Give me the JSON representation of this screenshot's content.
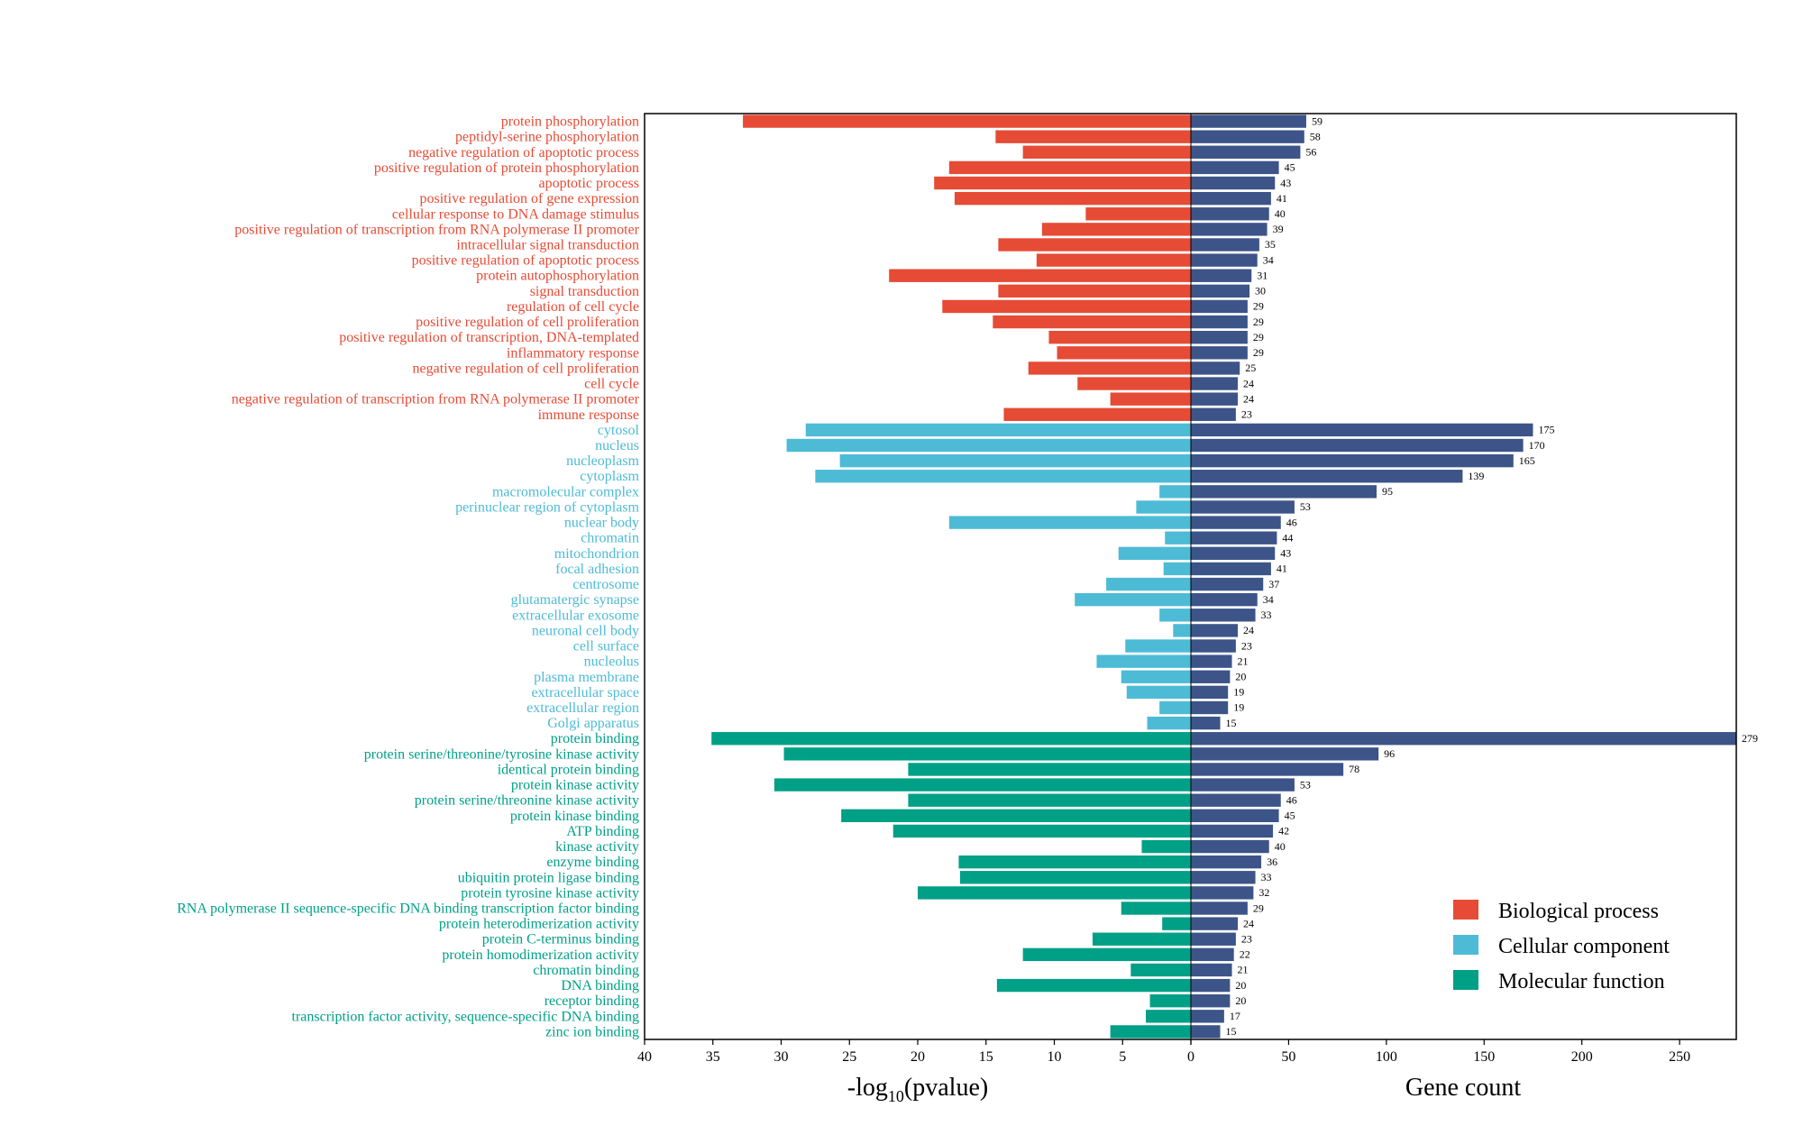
{
  "colors": {
    "biological_process": "#e64b35",
    "cellular_component": "#4dbbd5",
    "molecular_function": "#00a087",
    "gene_count": "#3c5488"
  },
  "chart_data": {
    "type": "bar",
    "title": "",
    "left_axis": {
      "label_prefix": "-log",
      "label_sub": "10",
      "label_suffix": "(pvalue)",
      "range": [
        40,
        0
      ],
      "ticks": [
        40,
        35,
        30,
        25,
        20,
        15,
        10,
        5,
        0
      ]
    },
    "right_axis": {
      "label": "Gene count",
      "range": [
        0,
        279
      ],
      "ticks": [
        0,
        50,
        100,
        150,
        200,
        250
      ]
    },
    "legend": {
      "placement": "bottom-right",
      "items": [
        {
          "label": "Biological process",
          "category": "biological_process"
        },
        {
          "label": "Cellular component",
          "category": "cellular_component"
        },
        {
          "label": "Molecular function",
          "category": "molecular_function"
        }
      ]
    },
    "terms": [
      {
        "name": "protein phosphorylation",
        "category": "biological_process",
        "neg_log10_p": 32.8,
        "count": 59
      },
      {
        "name": "peptidyl-serine phosphorylation",
        "category": "biological_process",
        "neg_log10_p": 14.3,
        "count": 58
      },
      {
        "name": "negative regulation of apoptotic process",
        "category": "biological_process",
        "neg_log10_p": 12.3,
        "count": 56
      },
      {
        "name": "positive regulation of protein phosphorylation",
        "category": "biological_process",
        "neg_log10_p": 17.7,
        "count": 45
      },
      {
        "name": "apoptotic process",
        "category": "biological_process",
        "neg_log10_p": 18.8,
        "count": 43
      },
      {
        "name": "positive regulation of gene expression",
        "category": "biological_process",
        "neg_log10_p": 17.3,
        "count": 41
      },
      {
        "name": "cellular response to DNA damage stimulus",
        "category": "biological_process",
        "neg_log10_p": 7.7,
        "count": 40
      },
      {
        "name": "positive regulation of transcription from RNA polymerase II promoter",
        "category": "biological_process",
        "neg_log10_p": 10.9,
        "count": 39
      },
      {
        "name": "intracellular signal transduction",
        "category": "biological_process",
        "neg_log10_p": 14.1,
        "count": 35
      },
      {
        "name": "positive regulation of apoptotic process",
        "category": "biological_process",
        "neg_log10_p": 11.3,
        "count": 34
      },
      {
        "name": "protein autophosphorylation",
        "category": "biological_process",
        "neg_log10_p": 22.1,
        "count": 31
      },
      {
        "name": "signal transduction",
        "category": "biological_process",
        "neg_log10_p": 14.1,
        "count": 30
      },
      {
        "name": "regulation of cell cycle",
        "category": "biological_process",
        "neg_log10_p": 18.2,
        "count": 29
      },
      {
        "name": "positive regulation of cell proliferation",
        "category": "biological_process",
        "neg_log10_p": 14.5,
        "count": 29
      },
      {
        "name": "positive regulation of transcription, DNA-templated",
        "category": "biological_process",
        "neg_log10_p": 10.4,
        "count": 29
      },
      {
        "name": "inflammatory response",
        "category": "biological_process",
        "neg_log10_p": 9.8,
        "count": 29
      },
      {
        "name": "negative regulation of cell proliferation",
        "category": "biological_process",
        "neg_log10_p": 11.9,
        "count": 25
      },
      {
        "name": "cell cycle",
        "category": "biological_process",
        "neg_log10_p": 8.3,
        "count": 24
      },
      {
        "name": "negative regulation of transcription from RNA polymerase II promoter",
        "category": "biological_process",
        "neg_log10_p": 5.9,
        "count": 24
      },
      {
        "name": "immune response",
        "category": "biological_process",
        "neg_log10_p": 13.7,
        "count": 23
      },
      {
        "name": "cytosol",
        "category": "cellular_component",
        "neg_log10_p": 28.2,
        "count": 175
      },
      {
        "name": "nucleus",
        "category": "cellular_component",
        "neg_log10_p": 29.6,
        "count": 170
      },
      {
        "name": "nucleoplasm",
        "category": "cellular_component",
        "neg_log10_p": 25.7,
        "count": 165
      },
      {
        "name": "cytoplasm",
        "category": "cellular_component",
        "neg_log10_p": 27.5,
        "count": 139
      },
      {
        "name": "macromolecular complex",
        "category": "cellular_component",
        "neg_log10_p": 2.3,
        "count": 95
      },
      {
        "name": "perinuclear region of cytoplasm",
        "category": "cellular_component",
        "neg_log10_p": 4.0,
        "count": 53
      },
      {
        "name": "nuclear body",
        "category": "cellular_component",
        "neg_log10_p": 17.7,
        "count": 46
      },
      {
        "name": "chromatin",
        "category": "cellular_component",
        "neg_log10_p": 1.9,
        "count": 44
      },
      {
        "name": "mitochondrion",
        "category": "cellular_component",
        "neg_log10_p": 5.3,
        "count": 43
      },
      {
        "name": "focal adhesion",
        "category": "cellular_component",
        "neg_log10_p": 2.0,
        "count": 41
      },
      {
        "name": "centrosome",
        "category": "cellular_component",
        "neg_log10_p": 6.2,
        "count": 37
      },
      {
        "name": "glutamatergic synapse",
        "category": "cellular_component",
        "neg_log10_p": 8.5,
        "count": 34
      },
      {
        "name": "extracellular exosome",
        "category": "cellular_component",
        "neg_log10_p": 2.3,
        "count": 33
      },
      {
        "name": "neuronal cell body",
        "category": "cellular_component",
        "neg_log10_p": 1.3,
        "count": 24
      },
      {
        "name": "cell surface",
        "category": "cellular_component",
        "neg_log10_p": 4.8,
        "count": 23
      },
      {
        "name": "nucleolus",
        "category": "cellular_component",
        "neg_log10_p": 6.9,
        "count": 21
      },
      {
        "name": "plasma membrane",
        "category": "cellular_component",
        "neg_log10_p": 5.1,
        "count": 20
      },
      {
        "name": "extracellular space",
        "category": "cellular_component",
        "neg_log10_p": 4.7,
        "count": 19
      },
      {
        "name": "extracellular region",
        "category": "cellular_component",
        "neg_log10_p": 2.3,
        "count": 19
      },
      {
        "name": "Golgi apparatus",
        "category": "cellular_component",
        "neg_log10_p": 3.2,
        "count": 15
      },
      {
        "name": "protein binding",
        "category": "molecular_function",
        "neg_log10_p": 35.1,
        "count": 279
      },
      {
        "name": "protein serine/threonine/tyrosine kinase activity",
        "category": "molecular_function",
        "neg_log10_p": 29.8,
        "count": 96
      },
      {
        "name": "identical protein binding",
        "category": "molecular_function",
        "neg_log10_p": 20.7,
        "count": 78
      },
      {
        "name": "protein kinase activity",
        "category": "molecular_function",
        "neg_log10_p": 30.5,
        "count": 53
      },
      {
        "name": "protein serine/threonine kinase activity",
        "category": "molecular_function",
        "neg_log10_p": 20.7,
        "count": 46
      },
      {
        "name": "protein kinase binding",
        "category": "molecular_function",
        "neg_log10_p": 25.6,
        "count": 45
      },
      {
        "name": "ATP binding",
        "category": "molecular_function",
        "neg_log10_p": 21.8,
        "count": 42
      },
      {
        "name": "kinase activity",
        "category": "molecular_function",
        "neg_log10_p": 3.6,
        "count": 40
      },
      {
        "name": "enzyme binding",
        "category": "molecular_function",
        "neg_log10_p": 17.0,
        "count": 36
      },
      {
        "name": "ubiquitin protein ligase binding",
        "category": "molecular_function",
        "neg_log10_p": 16.9,
        "count": 33
      },
      {
        "name": "protein tyrosine kinase activity",
        "category": "molecular_function",
        "neg_log10_p": 20.0,
        "count": 32
      },
      {
        "name": "RNA polymerase II sequence-specific DNA binding transcription factor binding",
        "category": "molecular_function",
        "neg_log10_p": 5.1,
        "count": 29
      },
      {
        "name": "protein heterodimerization activity",
        "category": "molecular_function",
        "neg_log10_p": 2.1,
        "count": 24
      },
      {
        "name": "protein C-terminus binding",
        "category": "molecular_function",
        "neg_log10_p": 7.2,
        "count": 23
      },
      {
        "name": "protein homodimerization activity",
        "category": "molecular_function",
        "neg_log10_p": 12.3,
        "count": 22
      },
      {
        "name": "chromatin binding",
        "category": "molecular_function",
        "neg_log10_p": 4.4,
        "count": 21
      },
      {
        "name": "DNA binding",
        "category": "molecular_function",
        "neg_log10_p": 14.2,
        "count": 20
      },
      {
        "name": "receptor binding",
        "category": "molecular_function",
        "neg_log10_p": 3.0,
        "count": 20
      },
      {
        "name": "transcription factor activity, sequence-specific DNA binding",
        "category": "molecular_function",
        "neg_log10_p": 3.3,
        "count": 17
      },
      {
        "name": "zinc ion binding",
        "category": "molecular_function",
        "neg_log10_p": 5.9,
        "count": 15
      }
    ]
  }
}
